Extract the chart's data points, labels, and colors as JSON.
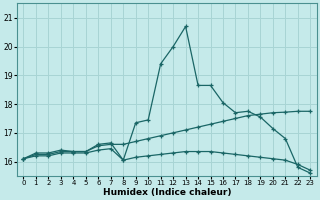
{
  "xlabel": "Humidex (Indice chaleur)",
  "ylabel": "",
  "background_color": "#c5eaea",
  "grid_color": "#a8d4d4",
  "line_color": "#1a6666",
  "x_ticks": [
    0,
    1,
    2,
    3,
    4,
    5,
    6,
    7,
    8,
    9,
    10,
    11,
    12,
    13,
    14,
    15,
    16,
    17,
    18,
    19,
    20,
    21,
    22,
    23
  ],
  "y_ticks": [
    16,
    17,
    18,
    19,
    20,
    21
  ],
  "ylim": [
    15.5,
    21.5
  ],
  "xlim": [
    -0.5,
    23.5
  ],
  "series1_x": [
    0,
    1,
    2,
    3,
    4,
    5,
    6,
    7,
    8,
    9,
    10,
    11,
    12,
    13,
    14,
    15,
    16,
    17,
    18,
    19,
    20,
    21,
    22,
    23
  ],
  "series1_y": [
    16.1,
    16.3,
    16.3,
    16.4,
    16.35,
    16.35,
    16.6,
    16.65,
    16.05,
    17.35,
    17.45,
    19.4,
    20.0,
    20.7,
    18.65,
    18.65,
    18.05,
    17.7,
    17.75,
    17.55,
    17.15,
    16.8,
    15.8,
    15.6
  ],
  "series2_x": [
    0,
    1,
    2,
    3,
    4,
    5,
    6,
    7,
    8,
    9,
    10,
    11,
    12,
    13,
    14,
    15,
    16,
    17,
    18,
    19,
    20,
    21,
    22,
    23
  ],
  "series2_y": [
    16.1,
    16.2,
    16.2,
    16.3,
    16.3,
    16.3,
    16.4,
    16.45,
    16.05,
    16.15,
    16.2,
    16.25,
    16.3,
    16.35,
    16.35,
    16.35,
    16.3,
    16.25,
    16.2,
    16.15,
    16.1,
    16.05,
    15.9,
    15.7
  ],
  "series3_x": [
    0,
    1,
    2,
    3,
    4,
    5,
    6,
    7,
    8,
    9,
    10,
    11,
    12,
    13,
    14,
    15,
    16,
    17,
    18,
    19,
    20,
    21,
    22,
    23
  ],
  "series3_y": [
    16.1,
    16.25,
    16.25,
    16.35,
    16.35,
    16.35,
    16.55,
    16.6,
    16.6,
    16.7,
    16.8,
    16.9,
    17.0,
    17.1,
    17.2,
    17.3,
    17.4,
    17.5,
    17.6,
    17.65,
    17.7,
    17.72,
    17.75,
    17.75
  ]
}
